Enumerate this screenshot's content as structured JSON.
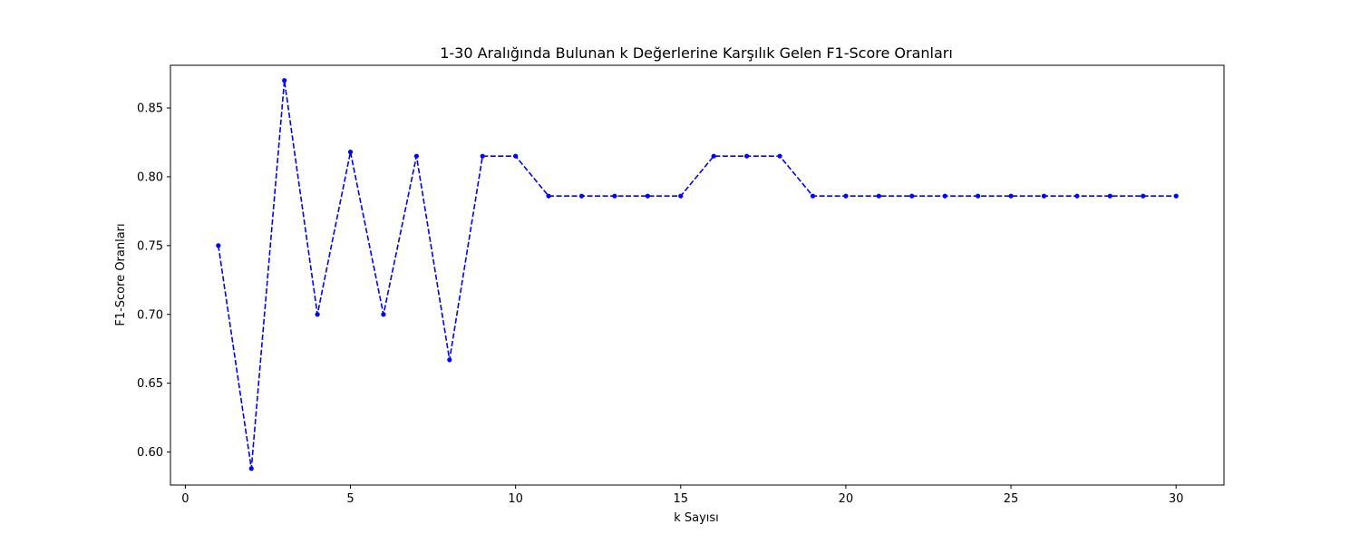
{
  "chart_data": {
    "type": "line",
    "title": "1-30 Aralığında Bulunan k Değerlerine Karşılık Gelen F1-Score Oranları",
    "xlabel": "k Sayısı",
    "ylabel": "F1-Score Oranları",
    "xlim": [
      -0.45,
      31.45
    ],
    "ylim": [
      0.576,
      0.881
    ],
    "xticks": [
      0,
      5,
      10,
      15,
      20,
      25,
      30
    ],
    "yticks": [
      0.6,
      0.65,
      0.7,
      0.75,
      0.8,
      0.85
    ],
    "grid": false,
    "line_style": "dashed",
    "marker": "circle",
    "color": "#0000ff",
    "series": [
      {
        "x": [
          1,
          2,
          3,
          4,
          5,
          6,
          7,
          8,
          9,
          10,
          11,
          12,
          13,
          14,
          15,
          16,
          17,
          18,
          19,
          20,
          21,
          22,
          23,
          24,
          25,
          26,
          27,
          28,
          29,
          30
        ],
        "values": [
          0.75,
          0.588,
          0.87,
          0.7,
          0.818,
          0.7,
          0.815,
          0.667,
          0.815,
          0.815,
          0.786,
          0.786,
          0.786,
          0.786,
          0.786,
          0.815,
          0.815,
          0.815,
          0.786,
          0.786,
          0.786,
          0.786,
          0.786,
          0.786,
          0.786,
          0.786,
          0.786,
          0.786,
          0.786,
          0.786
        ]
      }
    ]
  }
}
